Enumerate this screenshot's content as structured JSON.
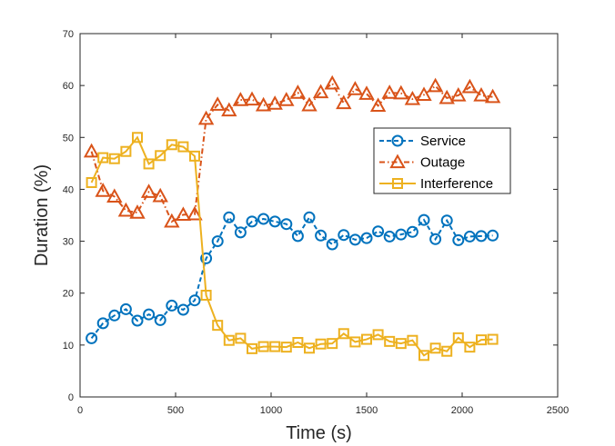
{
  "chart_data": {
    "type": "line",
    "title": "",
    "xlabel": "Time (s)",
    "ylabel": "Duration (%)",
    "xlim": [
      0,
      2500
    ],
    "ylim": [
      0,
      70
    ],
    "xticks": [
      0,
      500,
      1000,
      1500,
      2000,
      2500
    ],
    "yticks": [
      0,
      10,
      20,
      30,
      40,
      50,
      60,
      70
    ],
    "grid": false,
    "legend_position": "upper-right-inside",
    "x": [
      60,
      120,
      180,
      240,
      300,
      360,
      420,
      480,
      540,
      600,
      660,
      720,
      780,
      840,
      900,
      960,
      1020,
      1080,
      1140,
      1200,
      1260,
      1320,
      1380,
      1440,
      1500,
      1560,
      1620,
      1680,
      1740,
      1800,
      1860,
      1920,
      1980,
      2040,
      2100,
      2160
    ],
    "series": [
      {
        "name": "Service",
        "color": "#0072BD",
        "marker": "circle",
        "line_style": "dashed",
        "values": [
          11.3,
          14.2,
          15.7,
          16.9,
          14.7,
          15.9,
          14.8,
          17.6,
          16.8,
          18.6,
          26.7,
          30.0,
          34.6,
          31.7,
          33.8,
          34.3,
          33.8,
          33.3,
          31.0,
          34.6,
          31.1,
          29.4,
          31.2,
          30.3,
          30.6,
          31.9,
          30.9,
          31.3,
          31.8,
          34.1,
          30.4,
          34.0,
          30.2,
          30.9,
          31.0,
          31.1
        ]
      },
      {
        "name": "Outage",
        "color": "#D95319",
        "marker": "triangle",
        "line_style": "dash-dot",
        "values": [
          47.3,
          39.7,
          38.6,
          35.9,
          35.5,
          39.5,
          38.7,
          33.8,
          35.1,
          35.2,
          53.6,
          56.3,
          55.2,
          57.2,
          57.3,
          56.2,
          56.5,
          57.2,
          58.6,
          56.2,
          58.7,
          60.4,
          56.6,
          59.3,
          58.4,
          56.1,
          58.6,
          58.5,
          57.4,
          58.2,
          59.9,
          57.6,
          58.1,
          59.7,
          58.1,
          57.8
        ]
      },
      {
        "name": "Interference",
        "color": "#EDB120",
        "marker": "square",
        "line_style": "solid",
        "values": [
          41.3,
          46.1,
          45.9,
          47.3,
          50.0,
          44.9,
          46.5,
          48.6,
          48.2,
          46.4,
          19.6,
          13.8,
          10.9,
          11.3,
          9.3,
          9.7,
          9.7,
          9.6,
          10.5,
          9.4,
          10.2,
          10.3,
          12.2,
          10.6,
          11.1,
          12.0,
          10.7,
          10.3,
          10.9,
          8.0,
          9.4,
          8.8,
          11.4,
          9.6,
          11.0,
          11.1
        ]
      }
    ]
  }
}
